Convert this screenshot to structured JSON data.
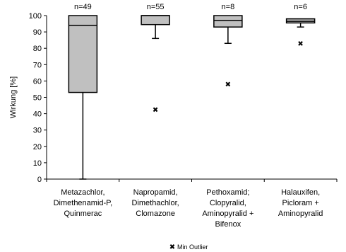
{
  "chart_data": {
    "type": "boxplot",
    "ylabel": "Wirkung [%]",
    "xlabel": "",
    "ylim": [
      0,
      100
    ],
    "yticks": [
      0,
      10,
      20,
      30,
      40,
      50,
      60,
      70,
      80,
      90,
      100
    ],
    "grid": false,
    "legend": {
      "position": "bottom-center",
      "label": "Min Outlier",
      "marker": "x"
    },
    "box_fill": "#c0c0c0",
    "categories": [
      {
        "lines": [
          "Metazachlor,",
          "Dimethenamid-P,",
          "Quinmerac"
        ],
        "n_label": "n=49",
        "min": 0,
        "q1": 53,
        "median": 94,
        "q3": 100,
        "max": 100,
        "outlier": null
      },
      {
        "lines": [
          "Napropamid,",
          "Dimethachlor,",
          "Clomazone"
        ],
        "n_label": "n=55",
        "min": 86,
        "q1": 94.5,
        "median": 100,
        "q3": 100,
        "max": 100,
        "outlier": 42.5
      },
      {
        "lines": [
          "Pethoxamid;",
          "Clopyralid,",
          "Aminopyralid +",
          "Bifenox"
        ],
        "n_label": "n=8",
        "min": 83,
        "q1": 93,
        "median": 97,
        "q3": 100,
        "max": 100,
        "outlier": 58
      },
      {
        "lines": [
          "Halauxifen,",
          "Picloram +",
          "Aminopyralid"
        ],
        "n_label": "n=6",
        "min": 93,
        "q1": 95.5,
        "median": 96.5,
        "q3": 98,
        "max": 98,
        "outlier": 83
      }
    ]
  }
}
